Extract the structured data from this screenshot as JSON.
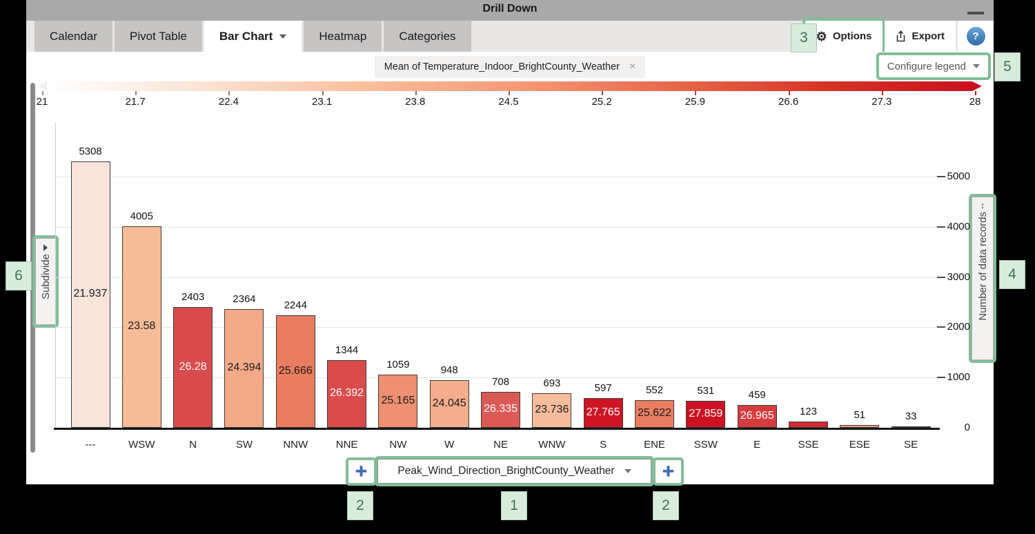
{
  "window": {
    "title": "Drill Down"
  },
  "tabs": [
    {
      "label": "Calendar",
      "active": false
    },
    {
      "label": "Pivot Table",
      "active": false
    },
    {
      "label": "Bar Chart",
      "active": true,
      "has_dropdown": true
    },
    {
      "label": "Heatmap",
      "active": false
    },
    {
      "label": "Categories",
      "active": false
    }
  ],
  "toolbar": {
    "options_label": "Options",
    "export_label": "Export",
    "help_label": "?"
  },
  "legend": {
    "chip_label": "Mean of Temperature_Indoor_BrightCounty_Weather",
    "chip_close": "×",
    "configure_label": "Configure legend"
  },
  "color_scale": {
    "min": 21,
    "max": 28,
    "tick_labels": [
      "21",
      "21.7",
      "22.4",
      "23.1",
      "23.8",
      "24.5",
      "25.2",
      "25.9",
      "26.6",
      "27.3",
      "28"
    ],
    "gradient_start_color": "#ffffff",
    "gradient_end_color": "#ca1120"
  },
  "chart_data": {
    "type": "bar",
    "title": "",
    "categories": [
      "---",
      "WSW",
      "N",
      "SW",
      "NNW",
      "NNE",
      "NW",
      "W",
      "NE",
      "WNW",
      "S",
      "ENE",
      "SSW",
      "E",
      "SSE",
      "ESE",
      "SE"
    ],
    "values": [
      5308,
      4005,
      2403,
      2364,
      2244,
      1344,
      1059,
      948,
      708,
      693,
      597,
      552,
      531,
      459,
      123,
      51,
      33
    ],
    "mean_labels": [
      "21.937",
      "23.58",
      "26.28",
      "24.394",
      "25.666",
      "26.392",
      "25.165",
      "24.045",
      "26.335",
      "23.736",
      "27.765",
      "25.622",
      "27.859",
      "26.965",
      "",
      "",
      ""
    ],
    "bar_colors": [
      "#f7e4da",
      "#f6bb97",
      "#d94b4b",
      "#f3aa89",
      "#ea7c5f",
      "#da4c4c",
      "#ee9071",
      "#f3ae8d",
      "#dc5a55",
      "#f6bd9c",
      "#cf1426",
      "#e87d60",
      "#ce1223",
      "#d63c3e",
      "#d42932",
      "#efa077",
      "#cf4040"
    ],
    "mean_label_colors": [
      "#1a1a1a",
      "#1a1a1a",
      "#ffffff",
      "#1a1a1a",
      "#1a1a1a",
      "#ffffff",
      "#1a1a1a",
      "#1a1a1a",
      "#ffffff",
      "#1a1a1a",
      "#ffffff",
      "#1a1a1a",
      "#ffffff",
      "#ffffff",
      "",
      "",
      ""
    ],
    "ylabel": "Number of data records",
    "xlabel": "",
    "y_ticks": [
      0,
      1000,
      2000,
      3000,
      4000,
      5000
    ],
    "ylim": [
      0,
      6100
    ],
    "grid": true,
    "color_metric": "Mean of Temperature_Indoor_BrightCounty_Weather",
    "color_scale_range": [
      21,
      28
    ],
    "x_dimension": "Peak_Wind_Direction_BrightCounty_Weather",
    "legend_position": "top"
  },
  "controls": {
    "subdivide_label": "Subdivide",
    "y_axis_label": "Number of data records",
    "x_dropdown_value": "Peak_Wind_Direction_BrightCounty_Weather",
    "add_button": "+"
  },
  "callouts": [
    "2",
    "1",
    "2",
    "3",
    "4",
    "5",
    "6"
  ]
}
